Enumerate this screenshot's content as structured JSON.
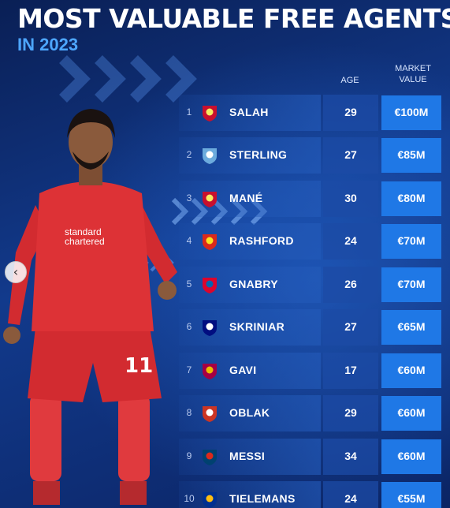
{
  "header": {
    "title": "MOST VALUABLE FREE AGENTS",
    "subtitle": "IN 2023"
  },
  "columns": {
    "age": "AGE",
    "market_value": "MARKET VALUE"
  },
  "colors": {
    "background": "#0d2a6b",
    "accent_blue": "#4da6ff",
    "value_box": "#1f78e6",
    "liverpool": "#c8102e",
    "man_city": "#6cabdd",
    "man_utd": "#da291c",
    "bayern": "#dc052d",
    "inter": "#010e80",
    "barcelona": "#a50044",
    "atletico": "#cb3524",
    "psg": "#004170",
    "leicester": "#003090"
  },
  "players": [
    {
      "rank": "1",
      "name": "SALAH",
      "age": "29",
      "value": "€100M",
      "club_icon": "liverpool-crest-icon"
    },
    {
      "rank": "2",
      "name": "STERLING",
      "age": "27",
      "value": "€85M",
      "club_icon": "man-city-crest-icon"
    },
    {
      "rank": "3",
      "name": "MANÉ",
      "age": "30",
      "value": "€80M",
      "club_icon": "liverpool-crest-icon"
    },
    {
      "rank": "4",
      "name": "RASHFORD",
      "age": "24",
      "value": "€70M",
      "club_icon": "man-utd-crest-icon"
    },
    {
      "rank": "5",
      "name": "GNABRY",
      "age": "26",
      "value": "€70M",
      "club_icon": "bayern-crest-icon"
    },
    {
      "rank": "6",
      "name": "SKRINIAR",
      "age": "27",
      "value": "€65M",
      "club_icon": "inter-crest-icon"
    },
    {
      "rank": "7",
      "name": "GAVI",
      "age": "17",
      "value": "€60M",
      "club_icon": "barcelona-crest-icon"
    },
    {
      "rank": "8",
      "name": "OBLAK",
      "age": "29",
      "value": "€60M",
      "club_icon": "atletico-crest-icon"
    },
    {
      "rank": "9",
      "name": "MESSI",
      "age": "34",
      "value": "€60M",
      "club_icon": "psg-crest-icon"
    },
    {
      "rank": "10",
      "name": "TIELEMANS",
      "age": "24",
      "value": "€55M",
      "club_icon": "leicester-crest-icon"
    }
  ],
  "player_photo": {
    "sponsor_line1": "standard",
    "sponsor_line2": "chartered",
    "shirt_number": "11"
  },
  "carousel": {
    "prev_icon": "chevron-left-icon"
  }
}
